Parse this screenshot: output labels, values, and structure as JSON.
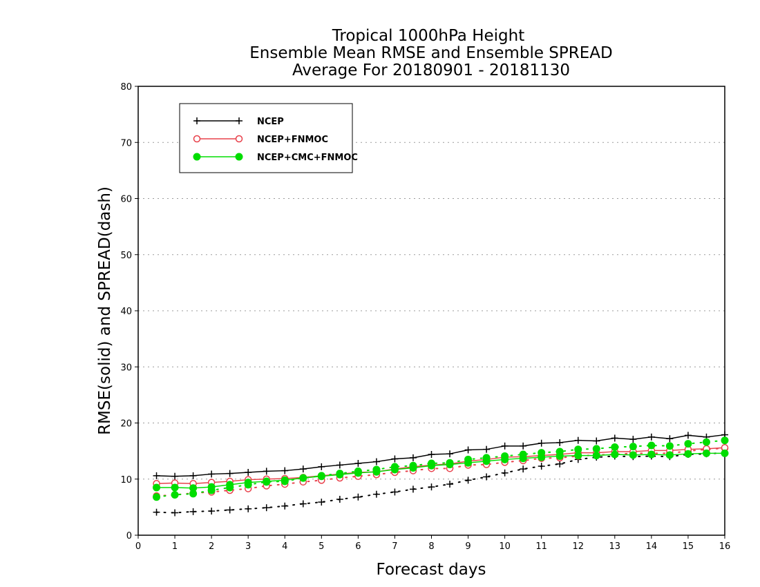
{
  "chart_data": {
    "type": "line",
    "title": [
      "Tropical 1000hPa Height",
      "Ensemble Mean RMSE and Ensemble SPREAD",
      "Average For 20180901 - 20181130"
    ],
    "xlabel": "Forecast days",
    "ylabel": "RMSE(solid) and SPREAD(dash)",
    "xlim": [
      0,
      16
    ],
    "ylim": [
      0,
      80
    ],
    "xticks": [
      "0",
      "1",
      "2",
      "3",
      "4",
      "5",
      "6",
      "7",
      "8",
      "9",
      "10",
      "11",
      "12",
      "13",
      "14",
      "15",
      "16"
    ],
    "yticks": [
      "0",
      "10",
      "20",
      "30",
      "40",
      "50",
      "60",
      "70",
      "80"
    ],
    "grid": true,
    "legend_position": "top-left",
    "x": [
      0.5,
      1,
      1.5,
      2,
      2.5,
      3,
      3.5,
      4,
      4.5,
      5,
      5.5,
      6,
      6.5,
      7,
      7.5,
      8,
      8.5,
      9,
      9.5,
      10,
      10.5,
      11,
      11.5,
      12,
      12.5,
      13,
      13.5,
      14,
      14.5,
      15,
      15.5,
      16
    ],
    "series": [
      {
        "name": "NCEP",
        "color": "#000000",
        "marker": "plus",
        "rmse": [
          10.6,
          10.5,
          10.6,
          10.9,
          11.0,
          11.2,
          11.4,
          11.5,
          11.8,
          12.2,
          12.5,
          12.8,
          13.1,
          13.6,
          13.8,
          14.4,
          14.5,
          15.2,
          15.3,
          15.9,
          15.9,
          16.4,
          16.5,
          16.9,
          16.8,
          17.3,
          17.1,
          17.5,
          17.2,
          17.8,
          17.5,
          17.9
        ],
        "spread": [
          4.1,
          4.0,
          4.2,
          4.3,
          4.5,
          4.7,
          4.9,
          5.2,
          5.6,
          5.9,
          6.4,
          6.8,
          7.3,
          7.7,
          8.2,
          8.6,
          9.1,
          9.8,
          10.4,
          11.1,
          11.8,
          12.3,
          12.7,
          13.5,
          13.9,
          14.1,
          14.0,
          14.1,
          14.0,
          14.4,
          14.5,
          14.7
        ]
      },
      {
        "name": "NCEP+FNMOC",
        "color": "#e8404a",
        "marker": "open-circle",
        "rmse": [
          9.2,
          9.3,
          9.2,
          9.4,
          9.6,
          9.9,
          10.0,
          10.1,
          10.3,
          10.6,
          10.9,
          11.2,
          11.3,
          11.8,
          12.2,
          12.5,
          12.7,
          13.2,
          13.5,
          13.9,
          14.0,
          14.2,
          14.4,
          14.7,
          14.7,
          14.9,
          14.9,
          15.1,
          15.1,
          15.3,
          15.4,
          15.6
        ],
        "spread": [
          7.0,
          7.2,
          7.5,
          7.7,
          8.0,
          8.3,
          8.8,
          9.1,
          9.5,
          9.8,
          10.2,
          10.5,
          10.8,
          11.2,
          11.5,
          11.9,
          11.9,
          12.5,
          12.6,
          13.0,
          13.3,
          13.7,
          13.8,
          14.1,
          14.3,
          14.4,
          14.6,
          14.6,
          14.6,
          15.0,
          15.3,
          15.5
        ]
      },
      {
        "name": "NCEP+CMC+FNMOC",
        "color": "#00dd00",
        "marker": "filled-circle",
        "rmse": [
          8.5,
          8.5,
          8.4,
          8.6,
          9.0,
          9.4,
          9.6,
          9.8,
          10.2,
          10.5,
          10.8,
          11.1,
          11.3,
          11.7,
          12.0,
          12.4,
          12.6,
          12.9,
          13.2,
          13.5,
          13.7,
          13.9,
          14.1,
          14.2,
          14.2,
          14.4,
          14.3,
          14.4,
          14.3,
          14.5,
          14.6,
          14.6
        ],
        "spread": [
          6.8,
          7.2,
          7.4,
          8.0,
          8.5,
          9.0,
          9.5,
          9.6,
          10.2,
          10.6,
          11.0,
          11.4,
          11.7,
          12.2,
          12.4,
          12.8,
          12.9,
          13.5,
          13.8,
          14.1,
          14.4,
          14.7,
          14.9,
          15.3,
          15.4,
          15.7,
          15.8,
          16.0,
          15.9,
          16.3,
          16.6,
          16.9
        ]
      }
    ]
  }
}
